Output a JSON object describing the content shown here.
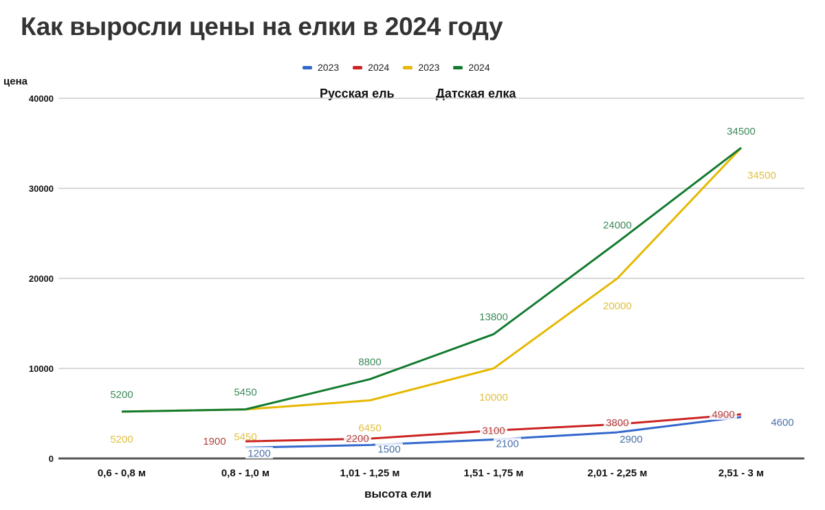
{
  "title": "Как выросли цены на елки в 2024 году",
  "legend": [
    {
      "label": "2023",
      "color": "#3366cc"
    },
    {
      "label": "2024",
      "color": "#cc2222"
    },
    {
      "label": "2023",
      "color": "#e6b800"
    },
    {
      "label": "2024",
      "color": "#117a2e"
    }
  ],
  "subtitles": {
    "russian": "Русская ель",
    "danish": "Датская елка"
  },
  "axes": {
    "ylabel": "цена",
    "xlabel": "высота ели"
  },
  "chart_data": {
    "type": "line",
    "title": "Как выросли цены на елки в 2024 году",
    "xlabel": "высота ели",
    "ylabel": "цена",
    "ylim": [
      0,
      40000
    ],
    "yticks": [
      0,
      10000,
      20000,
      30000,
      40000
    ],
    "grid": true,
    "legend_position": "top",
    "categories": [
      "0,6 - 0,8 м",
      "0,8 - 1,0 м",
      "1,01 - 1,25 м",
      "1,51 - 1,75 м",
      "2,01 - 2,25 м",
      "2,51 - 3 м"
    ],
    "series": [
      {
        "name": "2023 (Русская ель)",
        "group": "Русская ель",
        "color": "#3366cc",
        "label_color": "#4a6fa8",
        "values": [
          null,
          1200,
          1500,
          2100,
          2900,
          4600
        ]
      },
      {
        "name": "2024 (Русская ель)",
        "group": "Русская ель",
        "color": "#cc2222",
        "label_color": "#b04040",
        "values": [
          null,
          1900,
          2200,
          3100,
          3800,
          4900
        ]
      },
      {
        "name": "2023 (Датская елка)",
        "group": "Датская елка",
        "color": "#e6b800",
        "label_color": "#e0c040",
        "values": [
          5200,
          5450,
          6450,
          10000,
          20000,
          34500
        ]
      },
      {
        "name": "2024 (Датская елка)",
        "group": "Датская елка",
        "color": "#117a2e",
        "label_color": "#3d8a5a",
        "values": [
          5200,
          5450,
          8800,
          13800,
          24000,
          34500
        ]
      }
    ]
  }
}
